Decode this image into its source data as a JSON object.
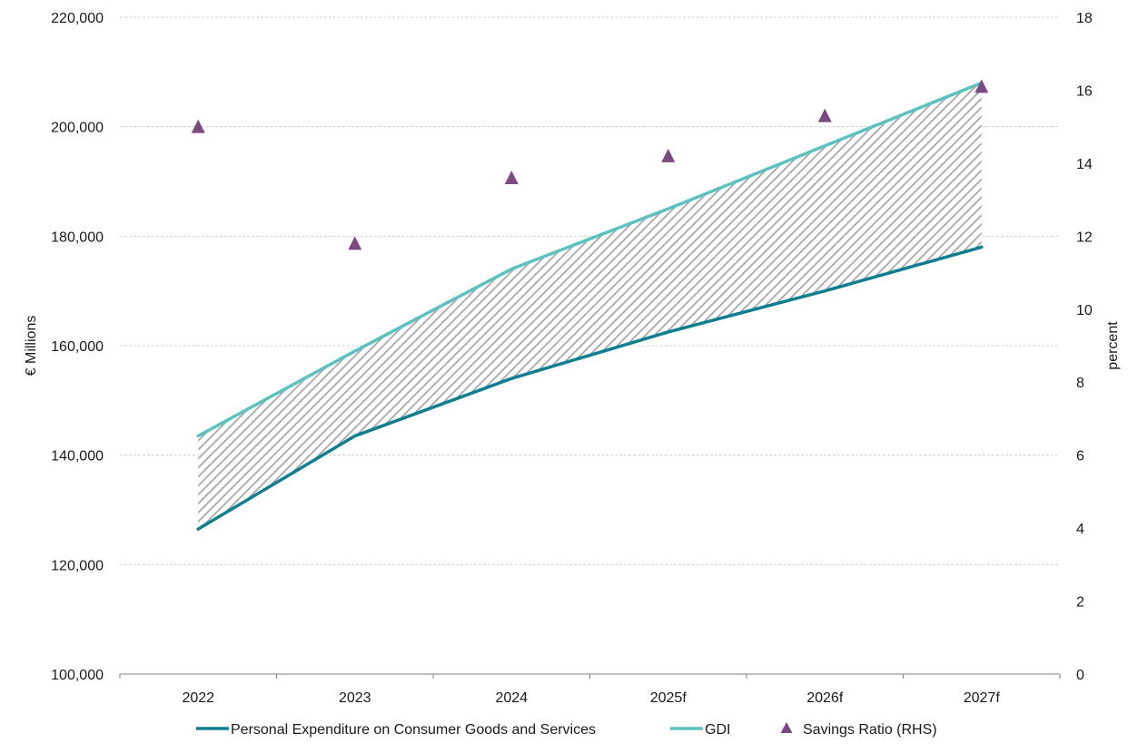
{
  "chart_data": {
    "type": "line",
    "categories": [
      "2022",
      "2023",
      "2024",
      "2025f",
      "2026f",
      "2027f"
    ],
    "series": [
      {
        "name": "Personal Expenditure on Consumer Goods and Services",
        "axis": "left",
        "type": "line",
        "color": "#0F7E91",
        "values": [
          126500,
          143500,
          154000,
          162500,
          170000,
          178000
        ]
      },
      {
        "name": "GDI",
        "axis": "left",
        "type": "line",
        "color": "#5BC2C0",
        "values": [
          143500,
          159000,
          174000,
          185000,
          196500,
          208000
        ]
      },
      {
        "name": "Savings Ratio (RHS)",
        "axis": "right",
        "type": "scatter",
        "marker": "triangle",
        "color": "#7B4A80",
        "values": [
          15.0,
          11.8,
          13.6,
          14.2,
          15.3,
          16.1
        ]
      }
    ],
    "shaded_region": {
      "between": [
        "Personal Expenditure on Consumer Goods and Services",
        "GDI"
      ],
      "pattern": "diagonal-hatch",
      "color": "#A6A6A6"
    },
    "left_axis": {
      "label": "€ Millions",
      "ylim": [
        100000,
        220000
      ],
      "ticks": [
        100000,
        120000,
        140000,
        160000,
        180000,
        200000,
        220000
      ],
      "tick_labels": [
        "100,000",
        "120,000",
        "140,000",
        "160,000",
        "180,000",
        "200,000",
        "220,000"
      ]
    },
    "right_axis": {
      "label": "percent",
      "ylim": [
        0,
        18
      ],
      "ticks": [
        0,
        2,
        4,
        6,
        8,
        10,
        12,
        14,
        16,
        18
      ],
      "tick_labels": [
        "0",
        "2",
        "4",
        "6",
        "8",
        "10",
        "12",
        "14",
        "16",
        "18"
      ]
    },
    "grid": "horizontal-dashed",
    "legend_position": "bottom"
  }
}
